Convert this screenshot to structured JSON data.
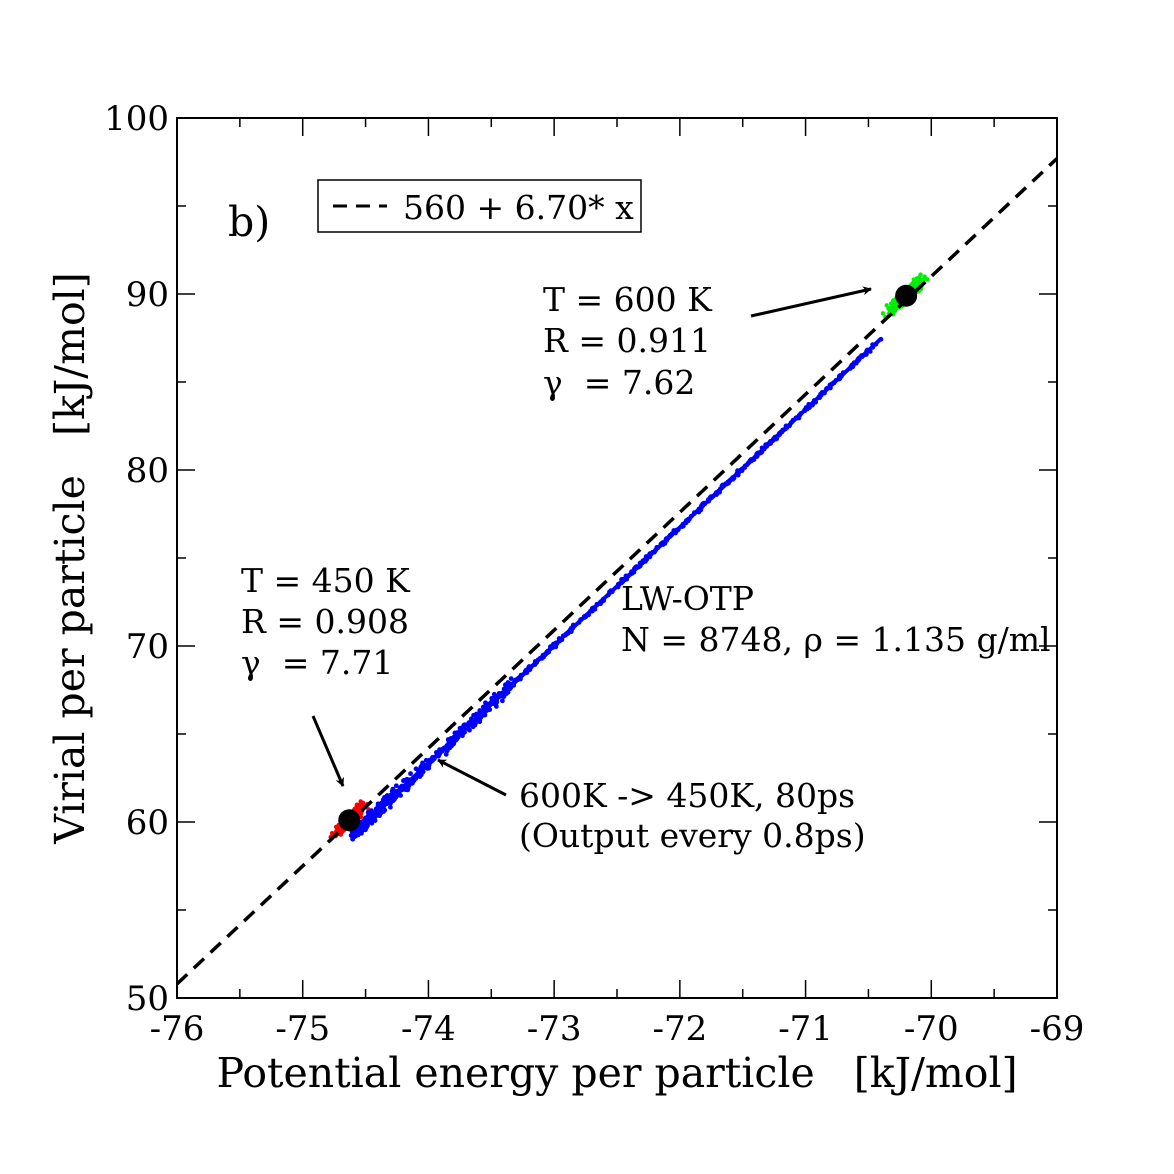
{
  "chart_data": {
    "type": "scatter",
    "panel_label": "b)",
    "xlabel": "Potential energy per particle   [kJ/mol]",
    "ylabel": "Virial per particle   [kJ/mol]",
    "xlim": [
      -76,
      -69
    ],
    "ylim": [
      50,
      100
    ],
    "x_ticks": [
      -76,
      -75,
      -74,
      -73,
      -72,
      -71,
      -70,
      -69
    ],
    "y_ticks": [
      50,
      60,
      70,
      80,
      90,
      100
    ],
    "x_tick_labels": [
      "-76",
      "-75",
      "-74",
      "-73",
      "-72",
      "-71",
      "-70",
      "-69"
    ],
    "y_tick_labels": [
      "50",
      "60",
      "70",
      "80",
      "90",
      "100"
    ],
    "grid": false,
    "legend": {
      "position": "top-left",
      "entries": [
        "560 + 6.70* x"
      ]
    },
    "fit_line": {
      "name": "560 + 6.70* x",
      "intercept": 560,
      "slope": 6.7,
      "style": "dashed",
      "color": "#000000"
    },
    "series": [
      {
        "name": "T = 450 K",
        "color": "#ff0000",
        "center": [
          -74.63,
          60.1
        ],
        "spread_x": 0.11,
        "spread_y": 0.7
      },
      {
        "name": "T = 600 K",
        "color": "#00ee00",
        "center": [
          -70.2,
          89.9
        ],
        "spread_x": 0.12,
        "spread_y": 0.8
      },
      {
        "name": "600K -> 450K, 80ps",
        "color": "#0000ff",
        "x_range": [
          -74.6,
          -70.4
        ],
        "slope": 6.7,
        "intercept": 560
      }
    ],
    "markers": [
      {
        "name": "mean-450K",
        "x": -74.63,
        "y": 60.1,
        "color": "#000000"
      },
      {
        "name": "mean-600K",
        "x": -70.2,
        "y": 89.9,
        "color": "#000000"
      }
    ],
    "annotations": {
      "t600": {
        "line1": "T = 600 K",
        "line2": "R = 0.911",
        "line3": "γ  = 7.62"
      },
      "t450": {
        "line1": "T = 450 K",
        "line2": "R = 0.908",
        "line3": "γ  = 7.71"
      },
      "system": {
        "line1": "LW-OTP",
        "line2": "N = 8748, ρ = 1.135 g/ml"
      },
      "quench": {
        "line1": "600K -> 450K, 80ps",
        "line2": "(Output every 0.8ps)"
      }
    }
  },
  "colors": {
    "red": "#ff0000",
    "green": "#00ee00",
    "blue": "#0000ff",
    "black": "#000000"
  }
}
